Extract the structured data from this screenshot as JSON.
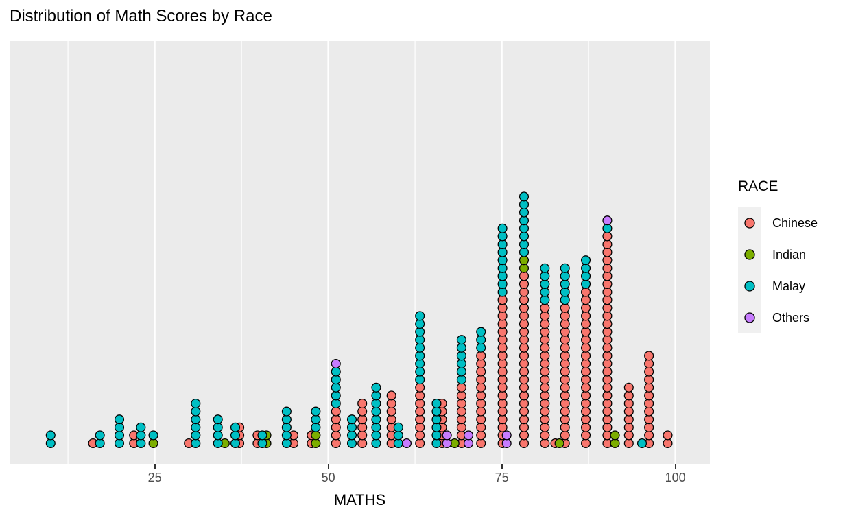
{
  "title": "Distribution of Math Scores by Race",
  "axes": {
    "x_title": "MATHS",
    "x_tick_labels": [
      "25",
      "50",
      "75",
      "100"
    ]
  },
  "legend": {
    "title": "RACE",
    "entries": [
      {
        "label": "Chinese",
        "color": "#F8766D"
      },
      {
        "label": "Indian",
        "color": "#7CAE00"
      },
      {
        "label": "Malay",
        "color": "#00BFC4"
      },
      {
        "label": "Others",
        "color": "#C77CFF"
      }
    ]
  },
  "panel": {
    "background": "#EBEBEB",
    "gridline_color": "#FFFFFF",
    "dot_outline": "#000000"
  },
  "chart_data": {
    "type": "scatter",
    "subtype": "stacked_dotplot",
    "title": "Distribution of Math Scores by Race",
    "xlabel": "MATHS",
    "ylabel": "",
    "legend_title": "RACE",
    "legend_position": "right",
    "grid": true,
    "x_axis": {
      "ticks": [
        25,
        50,
        75,
        100
      ],
      "minor_gridlines": [
        12.5,
        37.5,
        62.5,
        87.5
      ],
      "range": [
        4,
        105
      ]
    },
    "colors": {
      "Chinese": "#F8766D",
      "Indian": "#7CAE00",
      "Malay": "#00BFC4",
      "Others": "#C77CFF"
    },
    "stack_order": [
      "Chinese",
      "Indian",
      "Malay",
      "Others"
    ],
    "columns": [
      {
        "x": 10,
        "stack": [
          [
            "Malay",
            2
          ]
        ]
      },
      {
        "x": 16.1,
        "stack": [
          [
            "Chinese",
            1
          ]
        ]
      },
      {
        "x": 17.1,
        "stack": [
          [
            "Malay",
            2
          ]
        ]
      },
      {
        "x": 19.9,
        "stack": [
          [
            "Malay",
            4
          ]
        ]
      },
      {
        "x": 22,
        "stack": [
          [
            "Chinese",
            2
          ]
        ]
      },
      {
        "x": 23,
        "stack": [
          [
            "Malay",
            3
          ]
        ]
      },
      {
        "x": 24.8,
        "stack": [
          [
            "Indian",
            1
          ],
          [
            "Malay",
            1
          ]
        ]
      },
      {
        "x": 29.9,
        "stack": [
          [
            "Chinese",
            1
          ]
        ]
      },
      {
        "x": 30.9,
        "stack": [
          [
            "Malay",
            6
          ]
        ]
      },
      {
        "x": 34.1,
        "stack": [
          [
            "Malay",
            4
          ]
        ]
      },
      {
        "x": 35.1,
        "stack": [
          [
            "Indian",
            1
          ]
        ]
      },
      {
        "x": 36.6,
        "stack": [
          [
            "Malay",
            3
          ]
        ]
      },
      {
        "x": 37.2,
        "stack": [
          [
            "Chinese",
            3
          ]
        ]
      },
      {
        "x": 39.8,
        "stack": [
          [
            "Chinese",
            2
          ]
        ]
      },
      {
        "x": 40.5,
        "stack": [
          [
            "Malay",
            2
          ]
        ]
      },
      {
        "x": 41.1,
        "stack": [
          [
            "Indian",
            2
          ]
        ]
      },
      {
        "x": 44,
        "stack": [
          [
            "Malay",
            5
          ]
        ]
      },
      {
        "x": 45,
        "stack": [
          [
            "Chinese",
            2
          ]
        ]
      },
      {
        "x": 47.6,
        "stack": [
          [
            "Chinese",
            2
          ]
        ]
      },
      {
        "x": 48.2,
        "stack": [
          [
            "Indian",
            2
          ],
          [
            "Malay",
            3
          ]
        ]
      },
      {
        "x": 51.1,
        "stack": [
          [
            "Chinese",
            5
          ],
          [
            "Malay",
            5
          ],
          [
            "Others",
            1
          ]
        ]
      },
      {
        "x": 53.4,
        "stack": [
          [
            "Malay",
            4
          ]
        ]
      },
      {
        "x": 54.9,
        "stack": [
          [
            "Chinese",
            6
          ]
        ]
      },
      {
        "x": 56.9,
        "stack": [
          [
            "Malay",
            8
          ]
        ]
      },
      {
        "x": 59.1,
        "stack": [
          [
            "Chinese",
            7
          ]
        ]
      },
      {
        "x": 60.1,
        "stack": [
          [
            "Malay",
            3
          ]
        ]
      },
      {
        "x": 61.3,
        "stack": [
          [
            "Others",
            1
          ]
        ]
      },
      {
        "x": 63.2,
        "stack": [
          [
            "Chinese",
            8
          ],
          [
            "Malay",
            9
          ]
        ]
      },
      {
        "x": 65.6,
        "stack": [
          [
            "Malay",
            6
          ]
        ]
      },
      {
        "x": 66.4,
        "stack": [
          [
            "Chinese",
            6
          ]
        ]
      },
      {
        "x": 67.1,
        "stack": [
          [
            "Others",
            2
          ]
        ]
      },
      {
        "x": 68.2,
        "stack": [
          [
            "Indian",
            1
          ]
        ]
      },
      {
        "x": 69.2,
        "stack": [
          [
            "Chinese",
            8
          ],
          [
            "Malay",
            6
          ]
        ]
      },
      {
        "x": 70.2,
        "stack": [
          [
            "Others",
            2
          ]
        ]
      },
      {
        "x": 72,
        "stack": [
          [
            "Chinese",
            12
          ],
          [
            "Malay",
            3
          ]
        ]
      },
      {
        "x": 75.1,
        "stack": [
          [
            "Chinese",
            19
          ],
          [
            "Malay",
            9
          ]
        ]
      },
      {
        "x": 75.7,
        "stack": [
          [
            "Others",
            2
          ]
        ]
      },
      {
        "x": 78.2,
        "stack": [
          [
            "Chinese",
            22
          ],
          [
            "Indian",
            2
          ],
          [
            "Malay",
            8
          ]
        ]
      },
      {
        "x": 81.2,
        "stack": [
          [
            "Chinese",
            18
          ],
          [
            "Malay",
            5
          ]
        ]
      },
      {
        "x": 82.7,
        "stack": [
          [
            "Chinese",
            1
          ]
        ]
      },
      {
        "x": 83.3,
        "stack": [
          [
            "Indian",
            1
          ]
        ]
      },
      {
        "x": 84.1,
        "stack": [
          [
            "Chinese",
            18
          ],
          [
            "Malay",
            5
          ]
        ]
      },
      {
        "x": 87.1,
        "stack": [
          [
            "Chinese",
            20
          ],
          [
            "Malay",
            4
          ]
        ]
      },
      {
        "x": 90.2,
        "stack": [
          [
            "Chinese",
            27
          ],
          [
            "Malay",
            1
          ],
          [
            "Others",
            1
          ]
        ]
      },
      {
        "x": 91.3,
        "stack": [
          [
            "Indian",
            2
          ]
        ]
      },
      {
        "x": 93.3,
        "stack": [
          [
            "Chinese",
            8
          ]
        ]
      },
      {
        "x": 95.2,
        "stack": [
          [
            "Malay",
            1
          ]
        ]
      },
      {
        "x": 96.2,
        "stack": [
          [
            "Chinese",
            12
          ]
        ]
      },
      {
        "x": 98.9,
        "stack": [
          [
            "Chinese",
            2
          ]
        ]
      }
    ]
  }
}
